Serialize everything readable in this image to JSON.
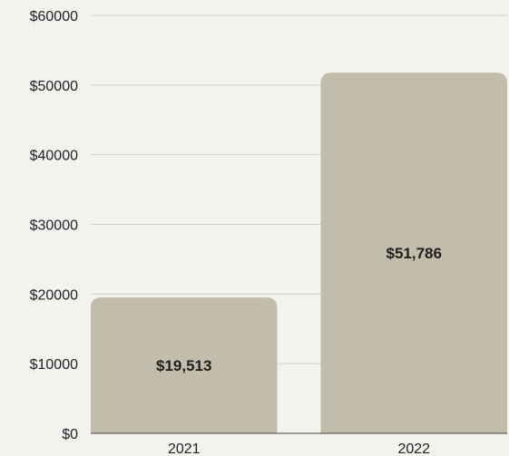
{
  "chart_data": {
    "type": "bar",
    "categories": [
      "2021",
      "2022"
    ],
    "values": [
      19513,
      51786
    ],
    "value_labels": [
      "$19,513",
      "$51,786"
    ],
    "title": "",
    "xlabel": "",
    "ylabel": "",
    "ylim": [
      0,
      60000
    ],
    "yticks": [
      0,
      10000,
      20000,
      30000,
      40000,
      50000,
      60000
    ],
    "ytick_labels": [
      "$0",
      "$10000",
      "$20000",
      "$30000",
      "$40000",
      "$50000",
      "$60000"
    ],
    "grid": true,
    "legend": "none",
    "bar_color": "#c2bcaa",
    "background_color": "#f3f2ef"
  }
}
